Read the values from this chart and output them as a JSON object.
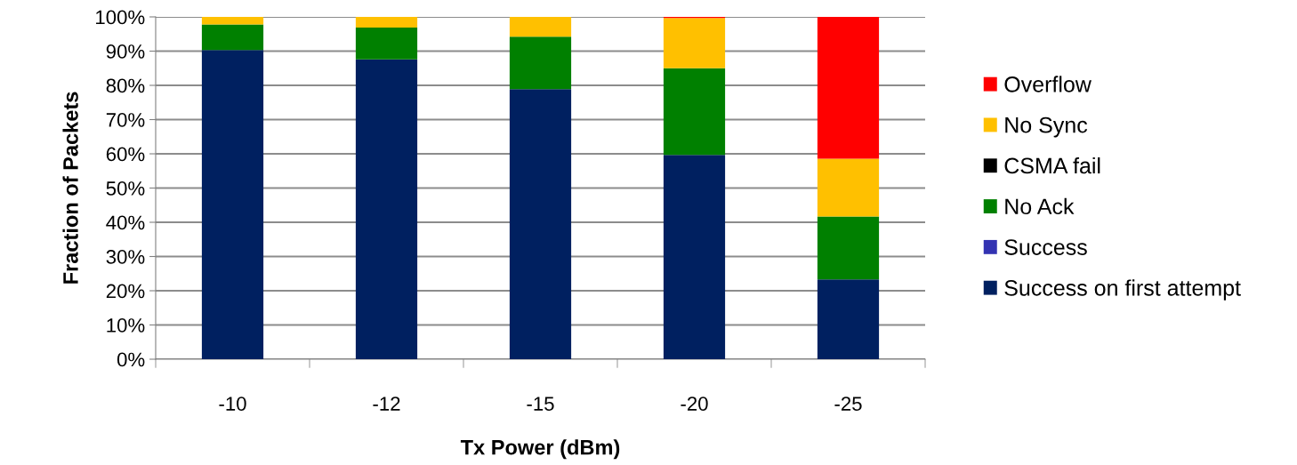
{
  "chart_data": {
    "type": "bar",
    "stacked": true,
    "xlabel": "Tx Power (dBm)",
    "ylabel": "Fraction of Packets",
    "categories": [
      "-10",
      "-12",
      "-15",
      "-20",
      "-25"
    ],
    "series": [
      {
        "name": "Success on first attempt",
        "color": "#002060",
        "values": [
          90.3,
          87.6,
          78.9,
          59.7,
          23.3
        ]
      },
      {
        "name": "Success",
        "color": "#3333b2",
        "values": [
          0,
          0,
          0,
          0,
          0
        ]
      },
      {
        "name": "No Ack",
        "color": "#008000",
        "values": [
          7.5,
          9.3,
          15.3,
          25.3,
          18.4
        ]
      },
      {
        "name": "CSMA fail",
        "color": "#000000",
        "values": [
          0,
          0,
          0,
          0,
          0
        ]
      },
      {
        "name": "No Sync",
        "color": "#ffc000",
        "values": [
          2.2,
          3.1,
          5.8,
          14.7,
          16.9
        ]
      },
      {
        "name": "Overflow",
        "color": "#ff0000",
        "values": [
          0,
          0,
          0,
          0.3,
          41.4
        ]
      }
    ],
    "ylim": [
      0,
      100
    ],
    "yticks": [
      {
        "value": 0,
        "label": "0%"
      },
      {
        "value": 10,
        "label": "10%"
      },
      {
        "value": 20,
        "label": "20%"
      },
      {
        "value": 30,
        "label": "30%"
      },
      {
        "value": 40,
        "label": "40%"
      },
      {
        "value": 50,
        "label": "50%"
      },
      {
        "value": 60,
        "label": "60%"
      },
      {
        "value": 70,
        "label": "70%"
      },
      {
        "value": 80,
        "label": "80%"
      },
      {
        "value": 90,
        "label": "90%"
      },
      {
        "value": 100,
        "label": "100%"
      }
    ],
    "grid": "y",
    "legend": "right"
  }
}
